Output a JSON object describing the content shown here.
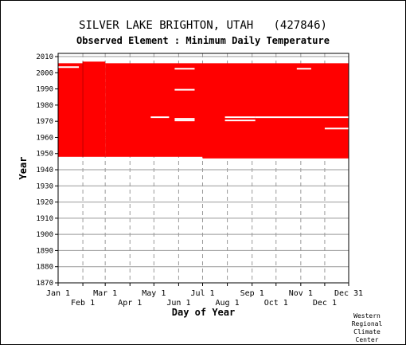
{
  "chart_data": {
    "type": "heatmap",
    "title": "SILVER LAKE BRIGHTON, UTAH   (427846)",
    "subtitle": "Observed Element : Minimum Daily Temperature",
    "xlabel": "Day of Year",
    "ylabel": "Year",
    "xlim": [
      1,
      365
    ],
    "ylim": [
      1870,
      2012
    ],
    "x_ticks_top_row": [
      {
        "label": "Jan 1",
        "day": 1
      },
      {
        "label": "Mar 1",
        "day": 60
      },
      {
        "label": "May 1",
        "day": 121
      },
      {
        "label": "Jul 1",
        "day": 182
      },
      {
        "label": "Sep 1",
        "day": 244
      },
      {
        "label": "Nov 1",
        "day": 305
      },
      {
        "label": "Dec 31",
        "day": 365
      }
    ],
    "x_ticks_bottom_row": [
      {
        "label": "Feb 1",
        "day": 32
      },
      {
        "label": "Apr 1",
        "day": 91
      },
      {
        "label": "Jun 1",
        "day": 152
      },
      {
        "label": "Aug 1",
        "day": 213
      },
      {
        "label": "Oct 1",
        "day": 274
      },
      {
        "label": "Dec 1",
        "day": 335
      }
    ],
    "y_ticks": [
      1870,
      1880,
      1890,
      1900,
      1910,
      1920,
      1930,
      1940,
      1950,
      1960,
      1970,
      1980,
      1990,
      2000,
      2010
    ],
    "data_color": "#ff0000",
    "data_blocks": [
      {
        "start_day": 1,
        "end_day": 32,
        "start_year": 1948,
        "end_year": 2005
      },
      {
        "start_day": 32,
        "end_day": 60,
        "start_year": 1948,
        "end_year": 2006
      },
      {
        "start_day": 60,
        "end_day": 182,
        "start_year": 1948,
        "end_year": 2005
      },
      {
        "start_day": 182,
        "end_day": 365,
        "start_year": 1947,
        "end_year": 2005
      }
    ],
    "missing_segments": [
      {
        "start_day": 1,
        "end_day": 27,
        "year": 2003
      },
      {
        "start_day": 117,
        "end_day": 140,
        "year": 1972
      },
      {
        "start_day": 147,
        "end_day": 172,
        "year": 2002
      },
      {
        "start_day": 147,
        "end_day": 172,
        "year": 1989
      },
      {
        "start_day": 147,
        "end_day": 172,
        "year": 1971
      },
      {
        "start_day": 147,
        "end_day": 172,
        "year": 1970
      },
      {
        "start_day": 210,
        "end_day": 248,
        "year": 1972
      },
      {
        "start_day": 210,
        "end_day": 248,
        "year": 1970
      },
      {
        "start_day": 248,
        "end_day": 365,
        "year": 1972
      },
      {
        "start_day": 300,
        "end_day": 318,
        "year": 2002
      },
      {
        "start_day": 335,
        "end_day": 365,
        "year": 1965
      }
    ],
    "grid": true,
    "credit": [
      "Western",
      "Regional",
      "Climate",
      "Center"
    ]
  }
}
